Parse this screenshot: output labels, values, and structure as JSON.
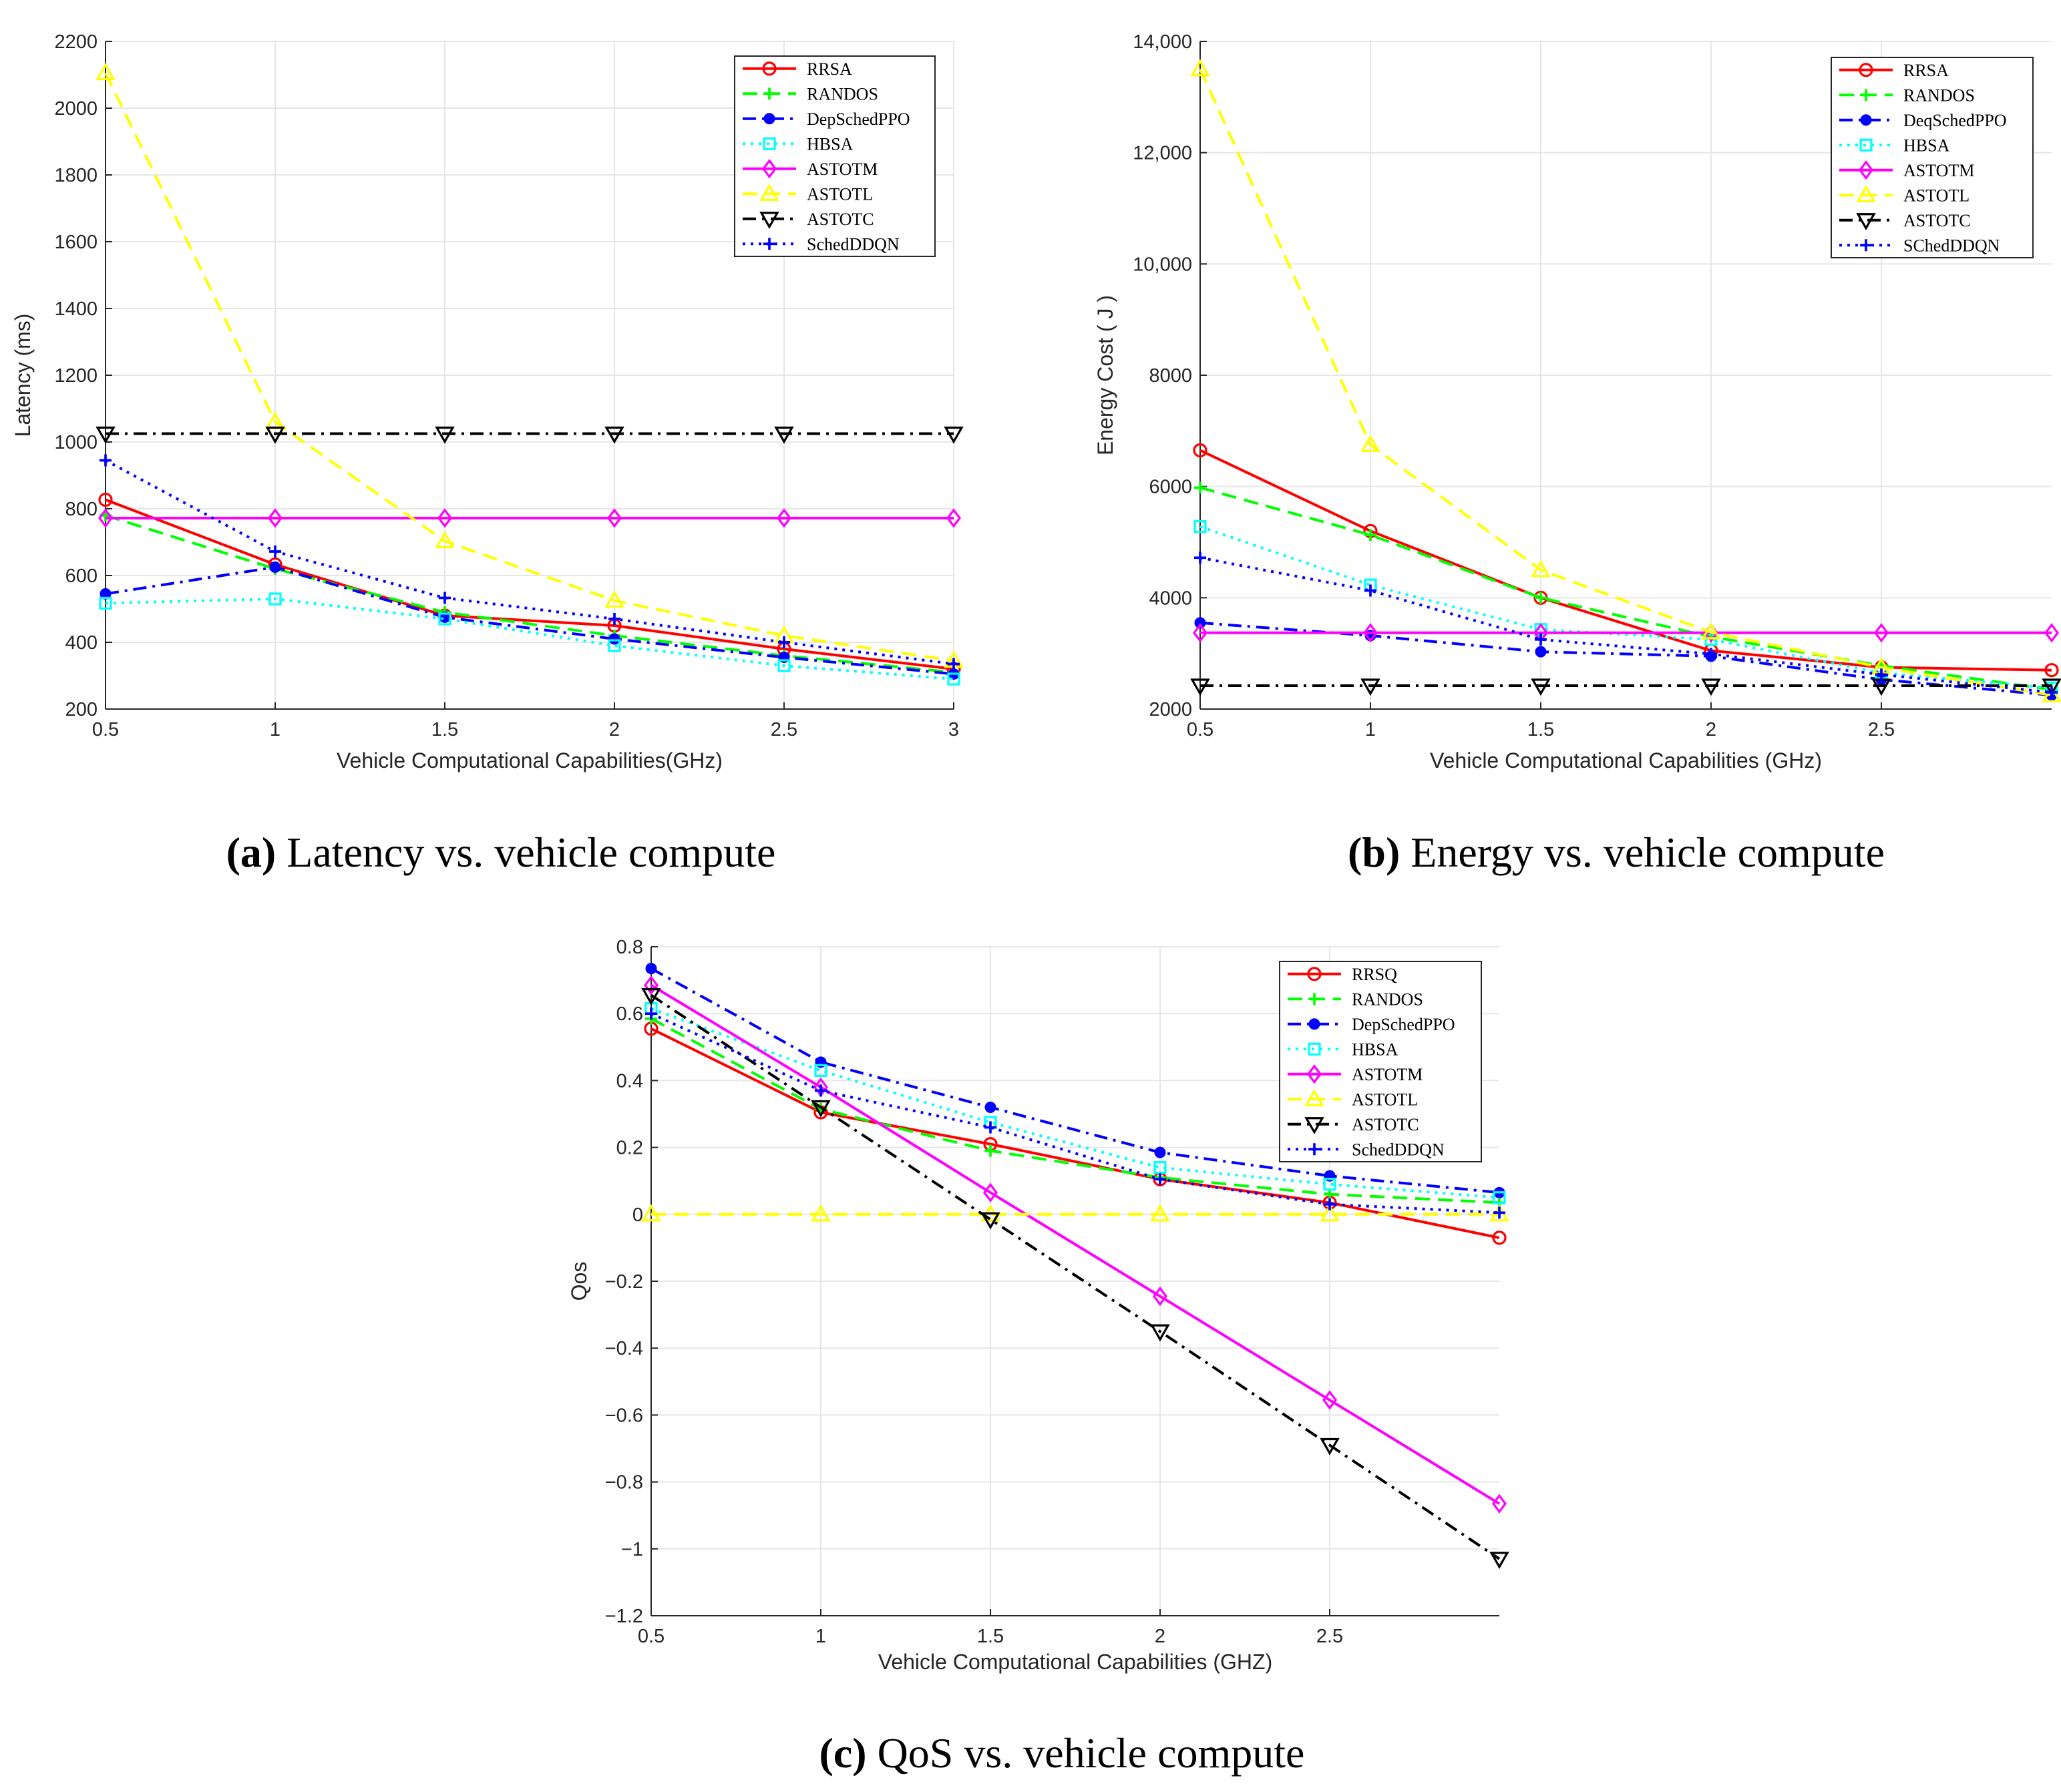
{
  "figure": {
    "captions": [
      {
        "letter": "(a)",
        "text": "Latency vs. vehicle compute"
      },
      {
        "letter": "(b)",
        "text": "Energy vs. vehicle compute"
      },
      {
        "letter": "(c)",
        "text": "QoS vs. vehicle compute"
      }
    ]
  },
  "styles": {
    "RRSA": {
      "color": "#ff0000",
      "dash": "",
      "marker": "circle"
    },
    "RRSQ": {
      "color": "#ff0000",
      "dash": "",
      "marker": "circle"
    },
    "RANDOS": {
      "color": "#00ff00",
      "dash": "dash",
      "marker": "plus"
    },
    "DepSchedPPO": {
      "color": "#0000ff",
      "dash": "dashdot",
      "marker": "dot"
    },
    "DeqSchedPPO": {
      "color": "#0000ff",
      "dash": "dashdot",
      "marker": "dot"
    },
    "HBSA": {
      "color": "#00ffff",
      "dash": "dot",
      "marker": "square"
    },
    "ASTOTM": {
      "color": "#ff00ff",
      "dash": "",
      "marker": "diamond"
    },
    "ASTOTL": {
      "color": "#ffff00",
      "dash": "dash",
      "marker": "triangle-up"
    },
    "ASTOTC": {
      "color": "#000000",
      "dash": "dashdot",
      "marker": "triangle-down"
    },
    "SchedDDQN": {
      "color": "#0000ff",
      "dash": "dot",
      "marker": "plus"
    },
    "SChedDDQN": {
      "color": "#0000ff",
      "dash": "dot",
      "marker": "plus"
    }
  },
  "chart_data": [
    {
      "type": "line",
      "xlabel": "Vehicle Computational Capabilities(GHz)",
      "ylabel": "Latency (ms)",
      "xlim": [
        0.5,
        3
      ],
      "ylim": [
        200,
        2200
      ],
      "xticks": [
        0.5,
        1,
        1.5,
        2,
        2.5,
        3
      ],
      "xtick_labels": [
        "0.5",
        "1",
        "1.5",
        "2",
        "2.5",
        "3"
      ],
      "yticks": [
        200,
        400,
        600,
        800,
        1000,
        1200,
        1400,
        1600,
        1800,
        2000,
        2200
      ],
      "ytick_labels": [
        "200",
        "400",
        "600",
        "800",
        "1000",
        "1200",
        "1400",
        "1600",
        "1800",
        "2000",
        "2200"
      ],
      "legend_position": "top-right",
      "x": [
        0.5,
        1,
        1.5,
        2,
        2.5,
        3
      ],
      "series": [
        {
          "name": "RRSA",
          "values": [
            827,
            633,
            480,
            450,
            380,
            320
          ]
        },
        {
          "name": "RANDOS",
          "values": [
            780,
            620,
            490,
            420,
            360,
            310
          ]
        },
        {
          "name": "DepSchedPPO",
          "values": [
            545,
            625,
            475,
            410,
            355,
            305
          ]
        },
        {
          "name": "HBSA",
          "values": [
            517,
            530,
            470,
            390,
            330,
            290
          ]
        },
        {
          "name": "ASTOTM",
          "values": [
            772,
            772,
            772,
            772,
            772,
            772
          ]
        },
        {
          "name": "ASTOTL",
          "values": [
            2105,
            1060,
            703,
            525,
            420,
            345
          ]
        },
        {
          "name": "ASTOTC",
          "values": [
            1025,
            1025,
            1025,
            1025,
            1025,
            1025
          ]
        },
        {
          "name": "SchedDDQN",
          "values": [
            945,
            672,
            533,
            470,
            400,
            335
          ]
        }
      ]
    },
    {
      "type": "line",
      "xlabel": "Vehicle Computational Capabilities (GHz)",
      "ylabel": "Energy Cost ( J )",
      "xlim": [
        0.5,
        3
      ],
      "ylim": [
        2000,
        14000
      ],
      "xticks": [
        0.5,
        1,
        1.5,
        2,
        2.5
      ],
      "xtick_labels": [
        "0.5",
        "1",
        "1.5",
        "2",
        "2.5"
      ],
      "yticks": [
        2000,
        4000,
        6000,
        8000,
        10000,
        12000,
        14000
      ],
      "ytick_labels": [
        "2000",
        "4000",
        "6000",
        "8000",
        "10,000",
        "12,000",
        "14,000"
      ],
      "legend_position": "top-right",
      "x": [
        0.5,
        1,
        1.5,
        2,
        2.5,
        3
      ],
      "series": [
        {
          "name": "RRSA",
          "values": [
            6650,
            5200,
            4000,
            3050,
            2750,
            2700
          ]
        },
        {
          "name": "RANDOS",
          "values": [
            5980,
            5130,
            4000,
            3300,
            2780,
            2350
          ]
        },
        {
          "name": "DeqSchedPPO",
          "values": [
            3550,
            3320,
            3030,
            2950,
            2530,
            2250
          ]
        },
        {
          "name": "HBSA",
          "values": [
            5280,
            4230,
            3430,
            3250,
            2650,
            2380
          ]
        },
        {
          "name": "ASTOTM",
          "values": [
            3370,
            3370,
            3370,
            3370,
            3370,
            3370
          ]
        },
        {
          "name": "ASTOTL",
          "values": [
            13500,
            6750,
            4500,
            3380,
            2750,
            2250
          ]
        },
        {
          "name": "ASTOTC",
          "values": [
            2420,
            2420,
            2420,
            2420,
            2420,
            2420
          ]
        },
        {
          "name": "SChedDDQN",
          "values": [
            4720,
            4130,
            3250,
            2990,
            2620,
            2300
          ]
        }
      ]
    },
    {
      "type": "line",
      "xlabel": "Vehicle Computational Capabilities (GHZ)",
      "ylabel": "Qos",
      "xlim": [
        0.5,
        3
      ],
      "ylim": [
        -1.2,
        0.8
      ],
      "xticks": [
        0.5,
        1,
        1.5,
        2,
        2.5
      ],
      "xtick_labels": [
        "0.5",
        "1",
        "1.5",
        "2",
        "2.5"
      ],
      "yticks": [
        -1.2,
        -1,
        -0.8,
        -0.6,
        -0.4,
        -0.2,
        0,
        0.2,
        0.4,
        0.6,
        0.8
      ],
      "ytick_labels": [
        "−1.2",
        "−1",
        "−0.8",
        "−0.6",
        "−0.4",
        "−0.2",
        "0",
        "0.2",
        "0.4",
        "0.6",
        "0.8"
      ],
      "legend_position": "top-right",
      "x": [
        0.5,
        1,
        1.5,
        2,
        2.5,
        3
      ],
      "series": [
        {
          "name": "RRSQ",
          "values": [
            0.555,
            0.305,
            0.21,
            0.105,
            0.035,
            -0.07
          ]
        },
        {
          "name": "RANDOS",
          "values": [
            0.585,
            0.315,
            0.19,
            0.11,
            0.06,
            0.035
          ]
        },
        {
          "name": "DepSchedPPO",
          "values": [
            0.735,
            0.455,
            0.32,
            0.185,
            0.115,
            0.065
          ]
        },
        {
          "name": "HBSA",
          "values": [
            0.615,
            0.43,
            0.275,
            0.14,
            0.09,
            0.05
          ]
        },
        {
          "name": "ASTOTM",
          "values": [
            0.685,
            0.38,
            0.065,
            -0.245,
            -0.555,
            -0.865
          ]
        },
        {
          "name": "ASTOTL",
          "values": [
            0,
            0,
            0,
            0,
            0,
            0
          ]
        },
        {
          "name": "ASTOTC",
          "values": [
            0.655,
            0.32,
            -0.015,
            -0.35,
            -0.69,
            -1.03
          ]
        },
        {
          "name": "SchedDDQN",
          "values": [
            0.6,
            0.37,
            0.26,
            0.105,
            0.03,
            0.005
          ]
        }
      ]
    }
  ]
}
